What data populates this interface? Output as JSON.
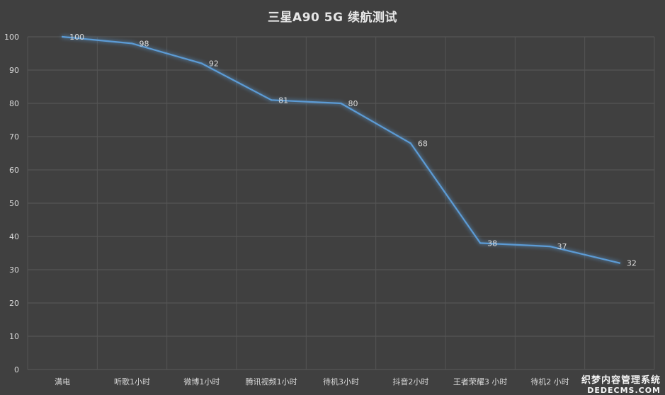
{
  "chart_data": {
    "type": "line",
    "title": "三星A90 5G 续航测试",
    "categories": [
      "满电",
      "听歌1小时",
      "微博1小时",
      "腾讯视频1小时",
      "待机3小时",
      "抖音2小时",
      "王者荣耀3 小时",
      "待机2 小时",
      ""
    ],
    "series": [
      {
        "values": [
          100,
          98,
          92,
          81,
          80,
          68,
          38,
          37,
          32
        ]
      }
    ],
    "ylim": [
      0,
      100
    ],
    "yticks": [
      0,
      10,
      20,
      30,
      40,
      50,
      60,
      70,
      80,
      90,
      100
    ],
    "grid": true,
    "line_color": "#5b9bd5"
  },
  "watermark": {
    "line1": "织梦内容管理系统",
    "line2": "DEDECMS.COM"
  }
}
